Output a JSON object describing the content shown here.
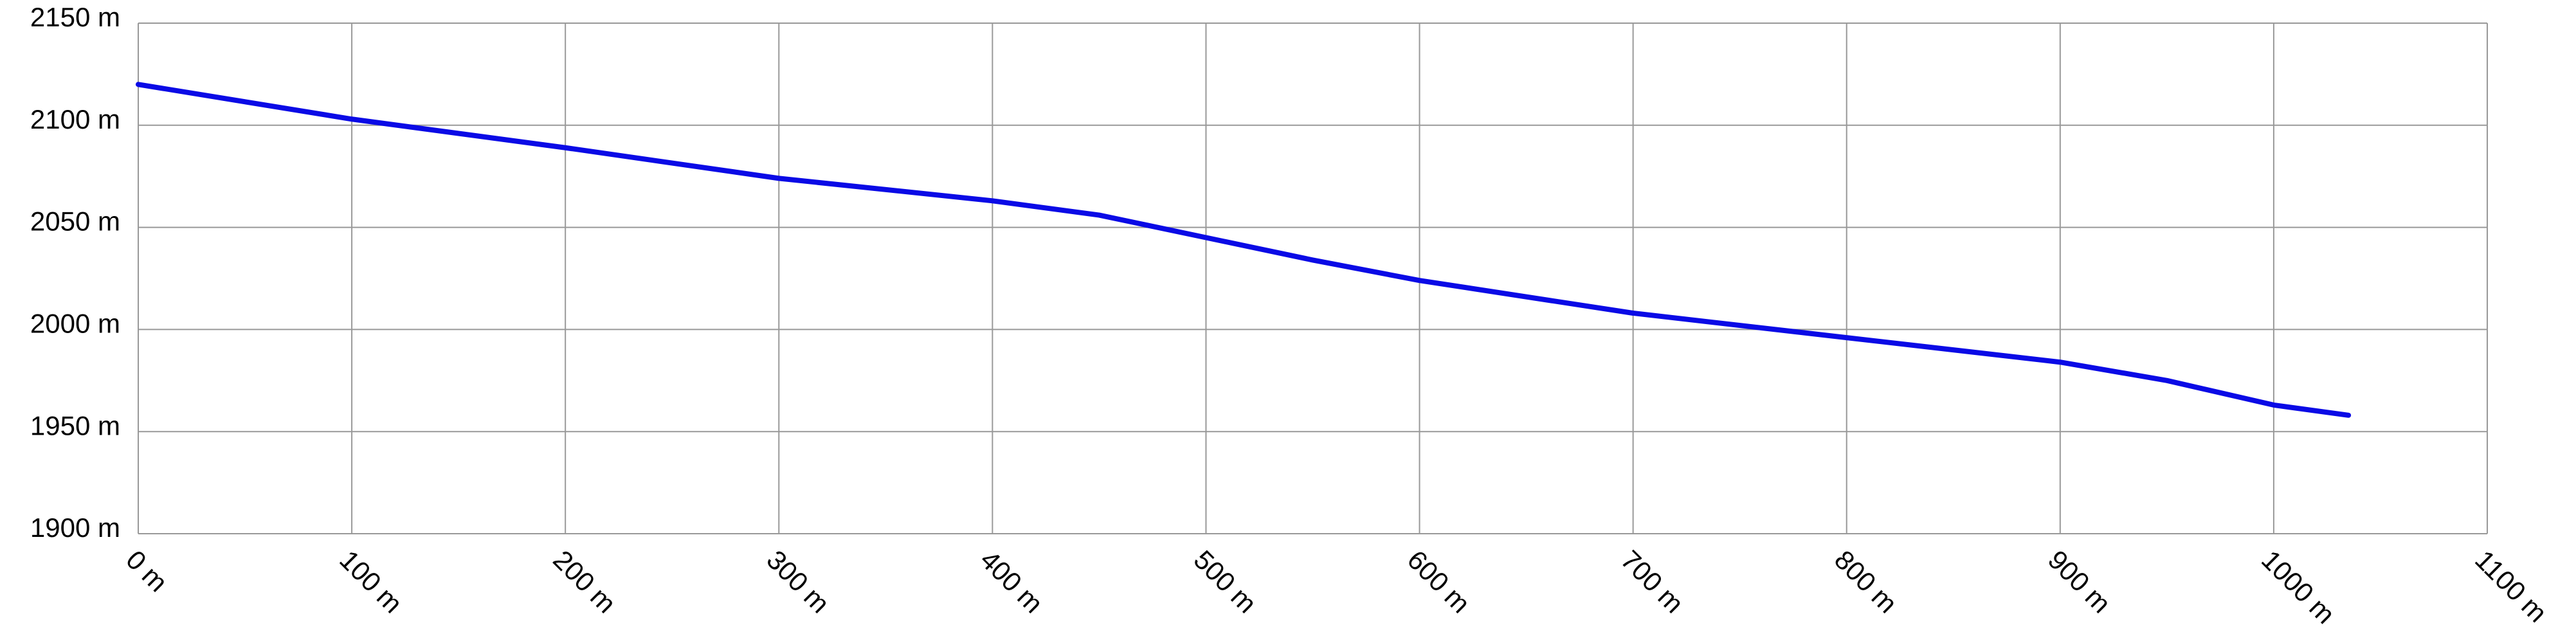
{
  "chart_data": {
    "type": "line",
    "x": [
      0,
      100,
      200,
      300,
      400,
      450,
      500,
      550,
      600,
      700,
      800,
      900,
      950,
      1000,
      1035
    ],
    "series": [
      {
        "color": "#0a0ae6",
        "values": [
          2120,
          2103,
          2089,
          2074,
          2063,
          2056,
          2045,
          2034,
          2024,
          2008,
          1996,
          1984,
          1975,
          1963,
          1958
        ]
      }
    ],
    "xlim": [
      0,
      1100
    ],
    "xticks": [
      {
        "value": 0,
        "label": "0 m"
      },
      {
        "value": 100,
        "label": "100 m"
      },
      {
        "value": 200,
        "label": "200 m"
      },
      {
        "value": 300,
        "label": "300 m"
      },
      {
        "value": 400,
        "label": "400 m"
      },
      {
        "value": 500,
        "label": "500 m"
      },
      {
        "value": 600,
        "label": "600 m"
      },
      {
        "value": 700,
        "label": "700 m"
      },
      {
        "value": 800,
        "label": "800 m"
      },
      {
        "value": 900,
        "label": "900 m"
      },
      {
        "value": 1000,
        "label": "1000 m"
      },
      {
        "value": 1100,
        "label": "1100 m"
      }
    ],
    "ylim": [
      1900,
      2150
    ],
    "yticks": [
      {
        "value": 1900,
        "label": "1900 m"
      },
      {
        "value": 1950,
        "label": "1950 m"
      },
      {
        "value": 2000,
        "label": "2000 m"
      },
      {
        "value": 2050,
        "label": "2050 m"
      },
      {
        "value": 2100,
        "label": "2100 m"
      },
      {
        "value": 2150,
        "label": "2150 m"
      }
    ],
    "grid": true
  }
}
